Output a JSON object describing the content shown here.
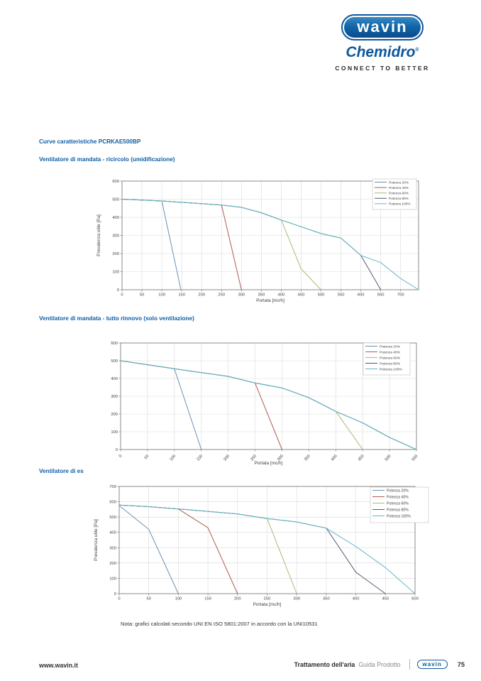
{
  "header": {
    "logo_text": "wavin",
    "brand": "Chemidro",
    "brand_reg": "®",
    "tagline": "CONNECT TO BETTER"
  },
  "titles": {
    "main": "Curve caratteristiche PCRKAE500BP",
    "chart1": "Ventilatore di mandata - ricircolo (umidificazione)",
    "chart2": "Ventilatore di mandata - tutto rinnovo (solo ventilazione)",
    "chart3": "Ventilatore di es"
  },
  "note": "Nota: grafici calcolati secondo UNI EN ISO 5801:2007 in accordo con la UNI10531",
  "footer": {
    "website": "www.wavin.it",
    "section": "Trattamento dell'aria",
    "doc": "Guida Prodotto",
    "logo_text": "wavin",
    "page": "75"
  },
  "colors": {
    "potenza20": "#6b90b4",
    "potenza40": "#b05a52",
    "potenza60": "#a4bc72",
    "potenza80": "#585778",
    "potenza100": "#62b8c7",
    "title_blue": "#0e5fa7",
    "grid": "#d9d9d9",
    "axis": "#7f7f7f"
  },
  "chart_data": [
    {
      "id": "mandata-ricircolo",
      "type": "line",
      "title": "",
      "xlabel": "Portata [mc/h]",
      "ylabel": "Prevalenza utile [Pa]",
      "xlim": [
        0,
        745
      ],
      "ylim": [
        0,
        600
      ],
      "xticks": [
        0,
        50,
        100,
        150,
        200,
        250,
        300,
        350,
        400,
        450,
        500,
        550,
        600,
        650,
        700
      ],
      "yticks": [
        0,
        100,
        200,
        300,
        400,
        500,
        600
      ],
      "x_tick_rotation": 0,
      "grid": true,
      "legend_position": "top-right",
      "series": [
        {
          "name": "Potenza 20%",
          "color_key": "potenza20",
          "points": [
            [
              0,
              500
            ],
            [
              100,
              490
            ],
            [
              148,
              0
            ]
          ]
        },
        {
          "name": "Potenza 40%",
          "color_key": "potenza40",
          "points": [
            [
              0,
              500
            ],
            [
              100,
              490
            ],
            [
              250,
              468
            ],
            [
              300,
              0
            ]
          ]
        },
        {
          "name": "Potenza 60%",
          "color_key": "potenza60",
          "points": [
            [
              0,
              500
            ],
            [
              100,
              490
            ],
            [
              250,
              468
            ],
            [
              300,
              455
            ],
            [
              350,
              425
            ],
            [
              400,
              385
            ],
            [
              450,
              115
            ],
            [
              500,
              0
            ]
          ]
        },
        {
          "name": "Potenza 80%",
          "color_key": "potenza80",
          "points": [
            [
              0,
              500
            ],
            [
              100,
              490
            ],
            [
              250,
              468
            ],
            [
              300,
              455
            ],
            [
              350,
              425
            ],
            [
              400,
              385
            ],
            [
              450,
              348
            ],
            [
              500,
              310
            ],
            [
              550,
              285
            ],
            [
              600,
              190
            ],
            [
              650,
              0
            ]
          ]
        },
        {
          "name": "Potenza 100%",
          "color_key": "potenza100",
          "points": [
            [
              0,
              500
            ],
            [
              100,
              490
            ],
            [
              250,
              468
            ],
            [
              300,
              455
            ],
            [
              350,
              425
            ],
            [
              400,
              385
            ],
            [
              450,
              348
            ],
            [
              500,
              310
            ],
            [
              550,
              285
            ],
            [
              600,
              190
            ],
            [
              650,
              150
            ],
            [
              700,
              62
            ],
            [
              745,
              0
            ]
          ]
        }
      ]
    },
    {
      "id": "mandata-tutto-rinnovo",
      "type": "line",
      "title": "",
      "xlabel": "Portata [mc/h]",
      "ylabel": "",
      "xlim": [
        0,
        550
      ],
      "ylim": [
        0,
        600
      ],
      "xticks": [
        0,
        50,
        100,
        150,
        200,
        250,
        300,
        350,
        400,
        450,
        500,
        550
      ],
      "yticks": [
        0,
        100,
        200,
        300,
        400,
        500,
        600
      ],
      "x_tick_rotation": -50,
      "grid": true,
      "legend_position": "top-right",
      "series": [
        {
          "name": "Potenza 20%",
          "color_key": "potenza20",
          "points": [
            [
              0,
              500
            ],
            [
              100,
              455
            ],
            [
              150,
              0
            ]
          ]
        },
        {
          "name": "Potenza 40%",
          "color_key": "potenza40",
          "points": [
            [
              0,
              500
            ],
            [
              100,
              455
            ],
            [
              200,
              412
            ],
            [
              250,
              375
            ],
            [
              300,
              0
            ]
          ]
        },
        {
          "name": "Potenza 60%",
          "color_key": "potenza60",
          "points": [
            [
              0,
              500
            ],
            [
              100,
              455
            ],
            [
              200,
              412
            ],
            [
              250,
              375
            ],
            [
              300,
              347
            ],
            [
              350,
              292
            ],
            [
              400,
              215
            ],
            [
              450,
              0
            ]
          ]
        },
        {
          "name": "Potenza 80%",
          "color_key": "potenza80",
          "points": [
            [
              0,
              500
            ],
            [
              100,
              455
            ],
            [
              200,
              412
            ],
            [
              250,
              375
            ],
            [
              300,
              347
            ],
            [
              350,
              292
            ],
            [
              400,
              215
            ],
            [
              450,
              150
            ],
            [
              500,
              68
            ],
            [
              550,
              0
            ]
          ]
        },
        {
          "name": "Potenza 100%",
          "color_key": "potenza100",
          "points": [
            [
              0,
              500
            ],
            [
              100,
              455
            ],
            [
              200,
              412
            ],
            [
              250,
              375
            ],
            [
              300,
              347
            ],
            [
              350,
              292
            ],
            [
              400,
              215
            ],
            [
              450,
              150
            ],
            [
              500,
              68
            ],
            [
              550,
              0
            ]
          ]
        }
      ]
    },
    {
      "id": "espulsione",
      "type": "line",
      "title": "",
      "xlabel": "Portata [mc/h]",
      "ylabel": "Prevalenza utile [Pa]",
      "xlim": [
        0,
        500
      ],
      "ylim": [
        0,
        700
      ],
      "xticks": [
        0,
        50,
        100,
        150,
        200,
        250,
        300,
        350,
        400,
        450,
        500
      ],
      "yticks": [
        0,
        100,
        200,
        300,
        400,
        500,
        600,
        700
      ],
      "x_tick_rotation": 0,
      "grid": true,
      "legend_position": "top-right",
      "series": [
        {
          "name": "Potenza 20%",
          "color_key": "potenza20",
          "points": [
            [
              0,
              575
            ],
            [
              50,
              420
            ],
            [
              100,
              0
            ]
          ]
        },
        {
          "name": "Potenza 40%",
          "color_key": "potenza40",
          "points": [
            [
              0,
              578
            ],
            [
              50,
              568
            ],
            [
              100,
              553
            ],
            [
              150,
              430
            ],
            [
              200,
              0
            ]
          ]
        },
        {
          "name": "Potenza 60%",
          "color_key": "potenza60",
          "points": [
            [
              0,
              578
            ],
            [
              50,
              568
            ],
            [
              100,
              553
            ],
            [
              200,
              520
            ],
            [
              250,
              490
            ],
            [
              300,
              0
            ]
          ]
        },
        {
          "name": "Potenza 80%",
          "color_key": "potenza80",
          "points": [
            [
              0,
              578
            ],
            [
              50,
              568
            ],
            [
              100,
              553
            ],
            [
              200,
              520
            ],
            [
              250,
              490
            ],
            [
              300,
              468
            ],
            [
              350,
              428
            ],
            [
              400,
              140
            ],
            [
              450,
              0
            ]
          ]
        },
        {
          "name": "Potenza 100%",
          "color_key": "potenza100",
          "points": [
            [
              0,
              578
            ],
            [
              50,
              568
            ],
            [
              100,
              553
            ],
            [
              200,
              520
            ],
            [
              250,
              490
            ],
            [
              300,
              468
            ],
            [
              350,
              428
            ],
            [
              400,
              308
            ],
            [
              450,
              170
            ],
            [
              500,
              0
            ]
          ]
        }
      ]
    }
  ]
}
